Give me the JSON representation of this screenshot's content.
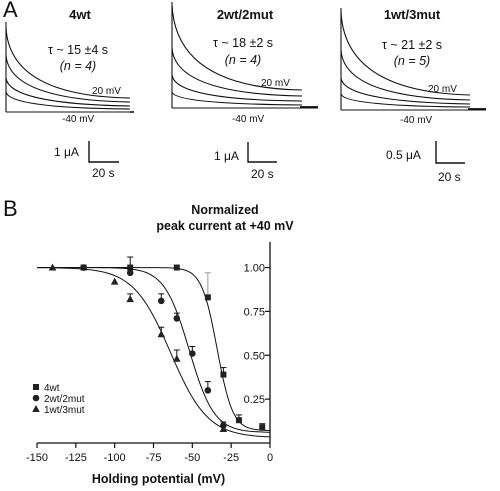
{
  "panel_a": {
    "letter": "A",
    "panels": [
      {
        "title": "4wt",
        "tau_text": "τ ~ 15 ±4 s",
        "n_text": "(n = 4)",
        "v_high": "20 mV",
        "v_low": "-40 mV",
        "scale_current": "1 μA",
        "scale_time": "20 s"
      },
      {
        "title": "2wt/2mut",
        "tau_text": "τ ~ 18 ±2 s",
        "n_text": "(n = 4)",
        "v_high": "20 mV",
        "v_low": "-40 mV",
        "scale_current": "1 μA",
        "scale_time": "20 s"
      },
      {
        "title": "1wt/3mut",
        "tau_text": "τ ~ 21 ±2 s",
        "n_text": "(n = 5)",
        "v_high": "20 mV",
        "v_low": "-40 mV",
        "scale_current": "0.5 μA",
        "scale_time": "20 s"
      }
    ]
  },
  "panel_b": {
    "letter": "B"
  },
  "colors": {
    "ink": "#111111",
    "marker": "#222222",
    "errorbar_gray": "#9a9a9a"
  },
  "chart_data": {
    "type": "scatter",
    "title": "Normalized peak current at +40 mV",
    "title_lines": [
      "Normalized",
      "peak current at +40 mV"
    ],
    "xlabel": "Holding potential (mV)",
    "ylabel": "",
    "xlim": [
      -150,
      0
    ],
    "ylim": [
      0,
      1.1
    ],
    "xticks": [
      -150,
      -125,
      -100,
      -75,
      -50,
      -25,
      0
    ],
    "yticks": [
      0.25,
      0.5,
      0.75,
      1.0
    ],
    "ytick_labels": [
      "0.25",
      "0.50",
      "0.75",
      "1.00"
    ],
    "legend_position": "bottom-left",
    "series": [
      {
        "name": "4wt",
        "marker": "square",
        "x": [
          -120,
          -90,
          -60,
          -40,
          -30,
          -20,
          -5
        ],
        "y": [
          1.0,
          1.0,
          1.0,
          0.83,
          0.39,
          0.13,
          0.09
        ],
        "err": [
          0.0,
          0.06,
          0.0,
          0.14,
          0.04,
          0.03,
          0.02
        ],
        "fit": {
          "v_half": -34,
          "slope": 5,
          "bottom": 0.07
        }
      },
      {
        "name": "2wt/2mut",
        "marker": "circle",
        "x": [
          -120,
          -90,
          -70,
          -60,
          -50,
          -40,
          -30
        ],
        "y": [
          1.0,
          0.97,
          0.81,
          0.71,
          0.51,
          0.3,
          0.1
        ],
        "err": [
          0.0,
          0.0,
          0.04,
          0.03,
          0.04,
          0.05,
          0.02
        ],
        "fit": {
          "v_half": -52,
          "slope": 8,
          "bottom": 0.06
        }
      },
      {
        "name": "1wt/3mut",
        "marker": "triangle",
        "x": [
          -140,
          -100,
          -90,
          -70,
          -60,
          -30
        ],
        "y": [
          1.0,
          0.92,
          0.82,
          0.62,
          0.48,
          0.08
        ],
        "err": [
          0.0,
          0.0,
          0.03,
          0.04,
          0.05,
          0.02
        ],
        "fit": {
          "v_half": -64,
          "slope": 12,
          "bottom": 0.03
        }
      }
    ]
  }
}
